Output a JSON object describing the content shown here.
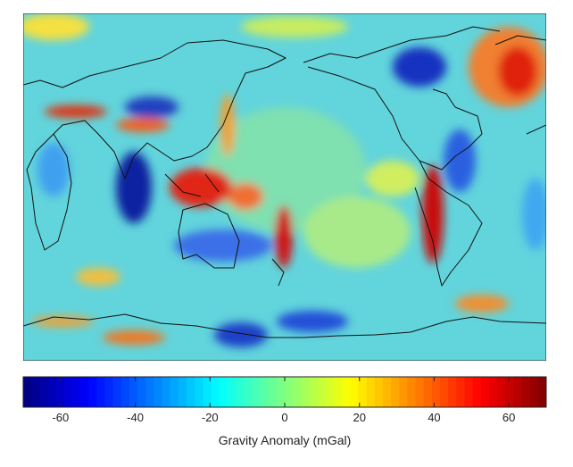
{
  "colorbar": {
    "label": "Gravity Anomaly (mGal)",
    "lim": [
      -70,
      70
    ],
    "ticks": [
      -60,
      -40,
      -20,
      0,
      20,
      40,
      60
    ],
    "colormap": "jet"
  }
}
